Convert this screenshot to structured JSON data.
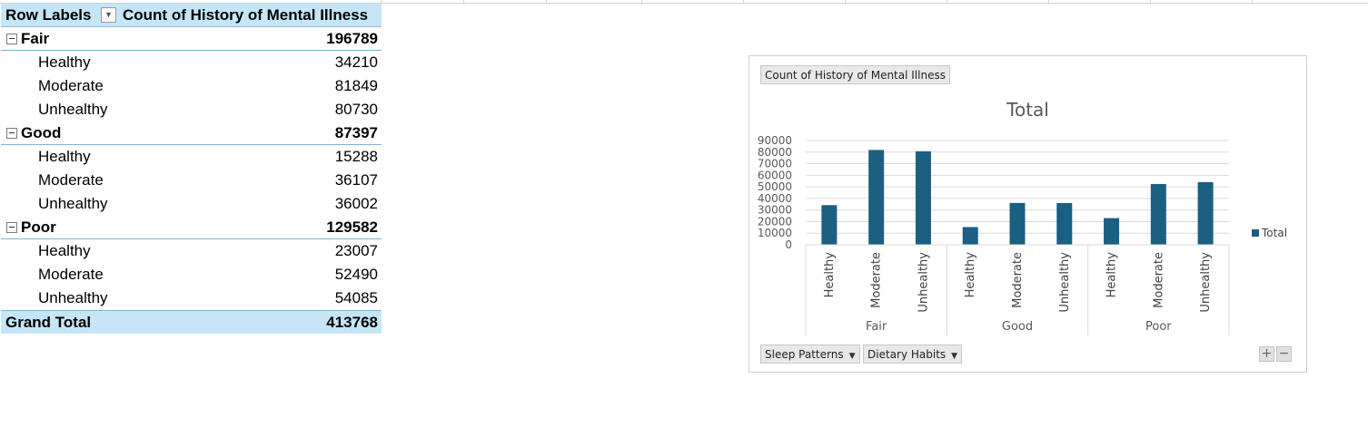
{
  "pivot": {
    "header": {
      "row_labels": "Row Labels",
      "value_field": "Count of History of Mental Illness"
    },
    "groups": [
      {
        "label": "Fair",
        "total": "196789",
        "children": [
          {
            "label": "Healthy",
            "value": "34210"
          },
          {
            "label": "Moderate",
            "value": "81849"
          },
          {
            "label": "Unhealthy",
            "value": "80730"
          }
        ]
      },
      {
        "label": "Good",
        "total": "87397",
        "children": [
          {
            "label": "Healthy",
            "value": "15288"
          },
          {
            "label": "Moderate",
            "value": "36107"
          },
          {
            "label": "Unhealthy",
            "value": "36002"
          }
        ]
      },
      {
        "label": "Poor",
        "total": "129582",
        "children": [
          {
            "label": "Healthy",
            "value": "23007"
          },
          {
            "label": "Moderate",
            "value": "52490"
          },
          {
            "label": "Unhealthy",
            "value": "54085"
          }
        ]
      }
    ],
    "grand_total": {
      "label": "Grand Total",
      "value": "413768"
    }
  },
  "chart": {
    "value_field_button": "Count of History of Mental Illness",
    "axis_field_buttons": [
      "Sleep Patterns",
      "Dietary Habits"
    ],
    "zoom_in": "+",
    "zoom_out": "−",
    "bar_color": "#1b5f82"
  },
  "chart_data": {
    "type": "bar",
    "title": "Total",
    "xlabel": "",
    "ylabel": "",
    "ylim": [
      0,
      90000
    ],
    "yticks": [
      0,
      10000,
      20000,
      30000,
      40000,
      50000,
      60000,
      70000,
      80000,
      90000
    ],
    "grid": true,
    "legend_position": "right",
    "groups": [
      "Fair",
      "Good",
      "Poor"
    ],
    "categories": [
      "Healthy",
      "Moderate",
      "Unhealthy",
      "Healthy",
      "Moderate",
      "Unhealthy",
      "Healthy",
      "Moderate",
      "Unhealthy"
    ],
    "category_groups": [
      "Fair",
      "Fair",
      "Fair",
      "Good",
      "Good",
      "Good",
      "Poor",
      "Poor",
      "Poor"
    ],
    "series": [
      {
        "name": "Total",
        "values": [
          34210,
          81849,
          80730,
          15288,
          36107,
          36002,
          23007,
          52490,
          54085
        ]
      }
    ]
  }
}
